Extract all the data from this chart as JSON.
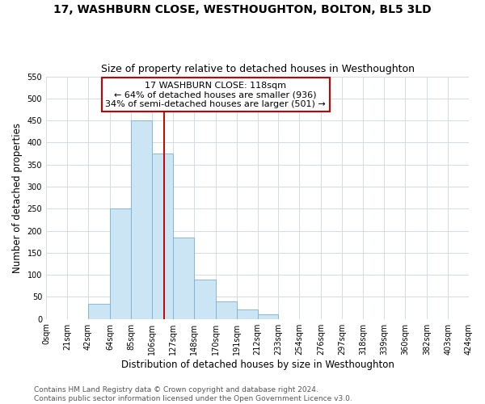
{
  "title": "17, WASHBURN CLOSE, WESTHOUGHTON, BOLTON, BL5 3LD",
  "subtitle": "Size of property relative to detached houses in Westhoughton",
  "xlabel": "Distribution of detached houses by size in Westhoughton",
  "ylabel": "Number of detached properties",
  "bar_edges": [
    0,
    21,
    42,
    64,
    85,
    106,
    127,
    148,
    170,
    191,
    212,
    233,
    254,
    276,
    297,
    318,
    339,
    360,
    382,
    403,
    424
  ],
  "bar_heights": [
    0,
    0,
    35,
    250,
    450,
    375,
    185,
    90,
    40,
    22,
    10,
    0,
    0,
    0,
    0,
    0,
    0,
    0,
    0,
    0
  ],
  "bar_color": "#cce5f5",
  "bar_edge_color": "#7ab0d4",
  "property_line_x": 118,
  "property_line_color": "#cc0000",
  "annotation_text": "17 WASHBURN CLOSE: 118sqm\n← 64% of detached houses are smaller (936)\n34% of semi-detached houses are larger (501) →",
  "annotation_box_color": "#ffffff",
  "annotation_box_edge_color": "#cc0000",
  "xlim": [
    0,
    424
  ],
  "ylim": [
    0,
    550
  ],
  "yticks": [
    0,
    50,
    100,
    150,
    200,
    250,
    300,
    350,
    400,
    450,
    500,
    550
  ],
  "xtick_labels": [
    "0sqm",
    "21sqm",
    "42sqm",
    "64sqm",
    "85sqm",
    "106sqm",
    "127sqm",
    "148sqm",
    "170sqm",
    "191sqm",
    "212sqm",
    "233sqm",
    "254sqm",
    "276sqm",
    "297sqm",
    "318sqm",
    "339sqm",
    "360sqm",
    "382sqm",
    "403sqm",
    "424sqm"
  ],
  "grid_color": "#d0dde8",
  "background_color": "#ffffff",
  "footer_text": "Contains HM Land Registry data © Crown copyright and database right 2024.\nContains public sector information licensed under the Open Government Licence v3.0.",
  "title_fontsize": 10,
  "subtitle_fontsize": 9,
  "axis_label_fontsize": 8.5,
  "tick_fontsize": 7,
  "annotation_fontsize": 8,
  "footer_fontsize": 6.5
}
